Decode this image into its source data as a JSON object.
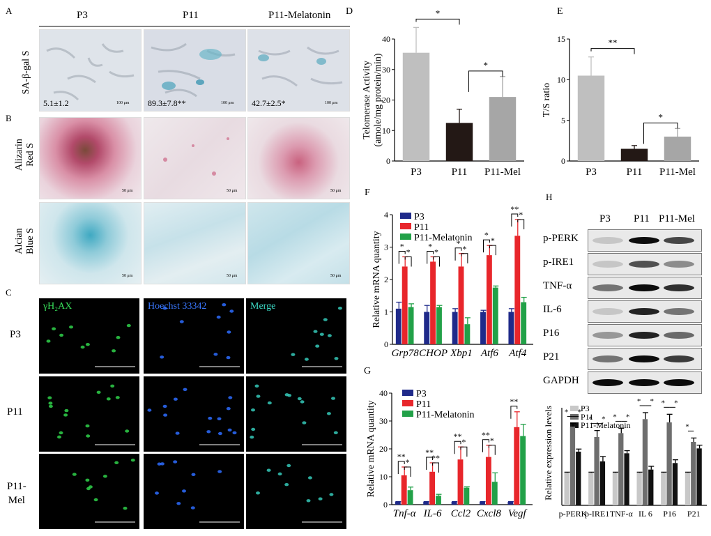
{
  "panelA": {
    "letter": "A",
    "col_headers": [
      "P3",
      "P11",
      "P11-Melatonin"
    ],
    "row_label": "SA-β-gal S",
    "values": [
      "5.1±1.2",
      "89.3±7.8**",
      "42.7±2.5*"
    ],
    "scale": "100 μm"
  },
  "panelB": {
    "letter": "B",
    "row1_label": [
      "Alizarin",
      "Red S"
    ],
    "row2_label": [
      "Alcian",
      "Blue S"
    ],
    "scale": "50 μm"
  },
  "panelC": {
    "letter": "C",
    "col_headers": [
      "γH₂AX",
      "Hoechst 33342",
      "Merge"
    ],
    "row_labels": [
      "P3",
      "P11",
      "P11-\nMel"
    ]
  },
  "panelH": {
    "letter": "H",
    "col_headers": [
      "P3",
      "P11",
      "P11-Mel"
    ],
    "bands": [
      "p-PERK",
      "p-IRE1",
      "TNF-α",
      "IL-6",
      "P16",
      "P21",
      "GAPDH"
    ]
  },
  "chart_data": [
    {
      "id": "D",
      "type": "bar",
      "letter": "D",
      "categories": [
        "P3",
        "P11",
        "P11-Mel"
      ],
      "values": [
        35.5,
        12.5,
        21
      ],
      "errors": [
        8.3,
        4.5,
        6.7
      ],
      "colors": [
        "#bfbfbf",
        "#231815",
        "#a6a6a6"
      ],
      "ylabel": [
        "Telomerase Activity",
        "(amole/mg protein/min)"
      ],
      "ylim": [
        0,
        40
      ],
      "yticks": [
        "0",
        "10",
        "20",
        "30",
        "40"
      ],
      "sig": [
        {
          "from": 0,
          "to": 1,
          "label": "*"
        },
        {
          "from": 1,
          "to": 2,
          "label": "*"
        }
      ]
    },
    {
      "id": "E",
      "type": "bar",
      "letter": "E",
      "categories": [
        "P3",
        "P11",
        "P11-Mel"
      ],
      "values": [
        10.5,
        1.5,
        3
      ],
      "errors": [
        2.3,
        0.4,
        1
      ],
      "colors": [
        "#bfbfbf",
        "#231815",
        "#a6a6a6"
      ],
      "ylabel": [
        "T/S ratio"
      ],
      "ylim": [
        0,
        15
      ],
      "yticks": [
        "0",
        "5",
        "10",
        "15"
      ],
      "sig": [
        {
          "from": 0,
          "to": 1,
          "label": "**"
        },
        {
          "from": 1,
          "to": 2,
          "label": "*"
        }
      ]
    },
    {
      "id": "F",
      "type": "bar",
      "letter": "F",
      "categories": [
        "Grp78",
        "CHOP",
        "Xbp1",
        "Atf6",
        "Atf4"
      ],
      "series": [
        {
          "name": "P3",
          "color": "#1f2a8a",
          "values": [
            1.1,
            1.0,
            1.0,
            1.0,
            1.0
          ],
          "errors": [
            0.2,
            0.2,
            0.1,
            0.05,
            0.1
          ]
        },
        {
          "name": "P11",
          "color": "#e8262b",
          "values": [
            2.4,
            2.55,
            2.4,
            2.75,
            3.35
          ],
          "errors": [
            0.3,
            0.15,
            0.4,
            0.3,
            0.5
          ]
        },
        {
          "name": "P11-Melatonin",
          "color": "#22a148",
          "values": [
            1.15,
            1.15,
            0.62,
            1.75,
            1.3
          ],
          "errors": [
            0.1,
            0.05,
            0.2,
            0.05,
            0.15
          ]
        }
      ],
      "ylabel": [
        "Relative mRNA quantity"
      ],
      "ylim": [
        0,
        4
      ],
      "yticks": [
        "0",
        "1",
        "2",
        "3",
        "4"
      ],
      "sig": [
        [
          "*",
          "*"
        ],
        [
          "*",
          "*"
        ],
        [
          "*",
          "*"
        ],
        [
          "*",
          "*"
        ],
        [
          "**",
          "*"
        ]
      ]
    },
    {
      "id": "G",
      "type": "bar",
      "letter": "G",
      "categories": [
        "Tnf-α",
        "IL-6",
        "Ccl2",
        "Cxcl8",
        "Vegf"
      ],
      "series": [
        {
          "name": "P3",
          "color": "#1f2a8a",
          "values": [
            1,
            1,
            1,
            1,
            1
          ],
          "errors": [
            0.1,
            0.1,
            0.1,
            0.1,
            0.1
          ]
        },
        {
          "name": "P11",
          "color": "#e8262b",
          "values": [
            10.5,
            11.8,
            16.2,
            17.1,
            27.8
          ],
          "errors": [
            3,
            3.2,
            4.5,
            4.2,
            5.5
          ]
        },
        {
          "name": "P11-Melatonin",
          "color": "#22a148",
          "values": [
            5.2,
            3.2,
            6.1,
            8.2,
            24.6
          ],
          "errors": [
            1.1,
            0.5,
            0.3,
            3.2,
            4.2
          ]
        }
      ],
      "ylabel": [
        "Relative mRNA quantity"
      ],
      "ylim": [
        0,
        40
      ],
      "yticks": [
        "0",
        "10",
        "20",
        "30",
        "40"
      ],
      "sig": [
        [
          "**",
          "*"
        ],
        [
          "**",
          "**"
        ],
        [
          "**",
          "*"
        ],
        [
          "**",
          "*"
        ],
        [
          "**",
          ""
        ]
      ]
    },
    {
      "id": "Hq",
      "type": "bar",
      "categories": [
        "p-PERK",
        "p-IRE1",
        "TNF-α",
        "IL 6",
        "P16",
        "P21"
      ],
      "series": [
        {
          "name": "P3",
          "color": "#c8c8c8",
          "values": [
            1,
            1,
            1,
            1,
            1,
            1
          ],
          "errors": [
            0.02,
            0.02,
            0.02,
            0.02,
            0.02,
            0.02
          ]
        },
        {
          "name": "P11",
          "color": "#6e6e6e",
          "values": [
            2.42,
            2.1,
            2.22,
            2.65,
            2.55,
            1.95
          ],
          "errors": [
            0.1,
            0.2,
            0.15,
            0.2,
            0.25,
            0.12
          ]
        },
        {
          "name": "P11-Melatonin",
          "color": "#111111",
          "values": [
            1.65,
            1.35,
            1.6,
            1.1,
            1.3,
            1.75
          ],
          "errors": [
            0.08,
            0.15,
            0.08,
            0.1,
            0.1,
            0.1
          ]
        }
      ],
      "ylabel": [
        "Relative expression levels"
      ],
      "ylim": [
        0,
        3
      ],
      "sig": [
        [
          "*",
          "*"
        ],
        [
          "*",
          "*"
        ],
        [
          "*",
          "*"
        ],
        [
          "*",
          "*"
        ],
        [
          "*",
          "*"
        ],
        [
          "*",
          ""
        ]
      ]
    }
  ]
}
